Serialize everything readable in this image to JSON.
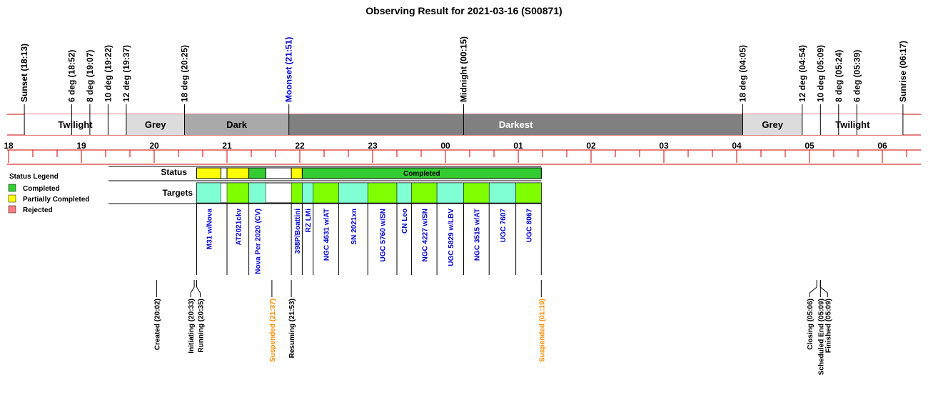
{
  "chart_data": {
    "type": "timeline",
    "title": "Observing Result for 2021-03-16 (S00871)",
    "time_axis": {
      "start": "18:00",
      "end": "30:40",
      "tick_labels": [
        "18",
        "19",
        "20",
        "21",
        "22",
        "23",
        "00",
        "01",
        "02",
        "03",
        "04",
        "05",
        "06"
      ],
      "minor_step_minutes": 20
    },
    "events": [
      {
        "label": "Sunset (18:13)",
        "time": "18:13",
        "color": "#000000"
      },
      {
        "label": "6 deg (18:52)",
        "time": "18:52",
        "color": "#000000"
      },
      {
        "label": "8 deg (19:07)",
        "time": "19:07",
        "color": "#000000"
      },
      {
        "label": "10 deg (19:22)",
        "time": "19:22",
        "color": "#000000"
      },
      {
        "label": "12 deg (19:37)",
        "time": "19:37",
        "color": "#000000"
      },
      {
        "label": "18 deg (20:25)",
        "time": "20:25",
        "color": "#000000"
      },
      {
        "label": "Moonset (21:51)",
        "time": "21:51",
        "color": "#0000cc"
      },
      {
        "label": "Midnight (00:15)",
        "time": "24:15",
        "color": "#000000"
      },
      {
        "label": "18 deg (04:05)",
        "time": "28:05",
        "color": "#000000"
      },
      {
        "label": "12 deg (04:54)",
        "time": "28:54",
        "color": "#000000"
      },
      {
        "label": "10 deg (05:09)",
        "time": "29:09",
        "color": "#000000"
      },
      {
        "label": "8 deg (05:24)",
        "time": "29:24",
        "color": "#000000"
      },
      {
        "label": "6 deg (05:39)",
        "time": "29:39",
        "color": "#000000"
      },
      {
        "label": "Sunrise (06:17)",
        "time": "30:17",
        "color": "#000000"
      }
    ],
    "sky_periods": [
      {
        "label": "Twilight",
        "start": "18:13",
        "end": "19:37",
        "color": "#ffffff",
        "text_color": "#000000"
      },
      {
        "label": "Grey",
        "start": "19:37",
        "end": "20:25",
        "color": "#dcdcdc",
        "text_color": "#000000"
      },
      {
        "label": "Dark",
        "start": "20:25",
        "end": "21:51",
        "color": "#a9a9a9",
        "text_color": "#000000"
      },
      {
        "label": "Darkest",
        "start": "21:51",
        "end": "28:05",
        "color": "#808080",
        "text_color": "#ffffff"
      },
      {
        "label": "Grey",
        "start": "28:05",
        "end": "28:54",
        "color": "#dcdcdc",
        "text_color": "#000000"
      },
      {
        "label": "Twilight",
        "start": "28:54",
        "end": "30:17",
        "color": "#ffffff",
        "text_color": "#000000"
      }
    ],
    "status_row_label": "Status",
    "status_segments": [
      {
        "start": "20:35",
        "end": "20:55",
        "status": "Partially Completed",
        "label": ""
      },
      {
        "start": "21:00",
        "end": "21:18",
        "status": "Partially Completed",
        "label": ""
      },
      {
        "start": "21:18",
        "end": "21:32",
        "status": "Completed",
        "label": ""
      },
      {
        "start": "21:53",
        "end": "22:02",
        "status": "Partially Completed",
        "label": ""
      },
      {
        "start": "22:02",
        "end": "25:19",
        "status": "Completed",
        "label": "Completed"
      }
    ],
    "targets_row_label": "Targets",
    "targets": [
      {
        "name": "M31 w/Nova",
        "start": "20:35",
        "end": "20:55",
        "color": "#80ffd4"
      },
      {
        "name": "AT2021ckv",
        "start": "21:00",
        "end": "21:18",
        "color": "#80ff00"
      },
      {
        "name": "Nova Per 2020 (CV)",
        "start": "21:18",
        "end": "21:32",
        "color": "#80ffd4"
      },
      {
        "name": "398P/Boattini",
        "start": "21:53",
        "end": "22:02",
        "color": "#80ff00"
      },
      {
        "name": "RZ LMi",
        "start": "22:02",
        "end": "22:11",
        "color": "#80ffd4"
      },
      {
        "name": "NGC 4631 w/AT",
        "start": "22:11",
        "end": "22:32",
        "color": "#80ff00"
      },
      {
        "name": "SN 2021xn",
        "start": "22:32",
        "end": "22:56",
        "color": "#80ffd4"
      },
      {
        "name": "UGC 5760 w/SN",
        "start": "22:56",
        "end": "23:20",
        "color": "#80ff00"
      },
      {
        "name": "CN Leo",
        "start": "23:20",
        "end": "23:32",
        "color": "#80ffd4"
      },
      {
        "name": "NGC 4227 w/SN",
        "start": "23:32",
        "end": "23:53",
        "color": "#80ff00"
      },
      {
        "name": "UGC 5829 w/LBV",
        "start": "23:53",
        "end": "24:15",
        "color": "#80ffd4"
      },
      {
        "name": "NGC 3515 w/AT",
        "start": "24:15",
        "end": "24:36",
        "color": "#80ff00"
      },
      {
        "name": "UGC 7607",
        "start": "24:36",
        "end": "24:58",
        "color": "#80ffd4"
      },
      {
        "name": "UGC 8067",
        "start": "24:58",
        "end": "25:19",
        "color": "#80ff00"
      }
    ],
    "state_events": [
      {
        "label": "Created (20:02)",
        "time": "20:02",
        "color": "#000000",
        "group": 0
      },
      {
        "label": "Initiating (20:33)",
        "time": "20:33",
        "color": "#000000",
        "group": 1
      },
      {
        "label": "Running (20:35)",
        "time": "20:35",
        "color": "#000000",
        "group": 1
      },
      {
        "label": "Suspended (21:37)",
        "time": "21:37",
        "color": "#ff8c00",
        "group": 2
      },
      {
        "label": "Resuming (21:53)",
        "time": "21:53",
        "color": "#000000",
        "group": 3
      },
      {
        "label": "Suspended (01:19)",
        "time": "25:19",
        "color": "#ff8c00",
        "group": 4
      },
      {
        "label": "Closing (05:06)",
        "time": "29:06",
        "color": "#000000",
        "group": 5
      },
      {
        "label": "Scheduled End (05:09)",
        "time": "29:09",
        "color": "#000000",
        "group": 5
      },
      {
        "label": "Finished (05:09)",
        "time": "29:09",
        "color": "#000000",
        "group": 5
      }
    ],
    "legend": {
      "title": "Status Legend",
      "placement": "left",
      "items": [
        {
          "label": "Completed",
          "color": "#33cc33"
        },
        {
          "label": "Partially Completed",
          "color": "#ffff00"
        },
        {
          "label": "Rejected",
          "color": "#ff8080"
        }
      ]
    },
    "status_colors": {
      "Completed": "#33cc33",
      "Partially Completed": "#ffff00",
      "Rejected": "#ff8080"
    },
    "axis_line_color": "#cc0000"
  }
}
